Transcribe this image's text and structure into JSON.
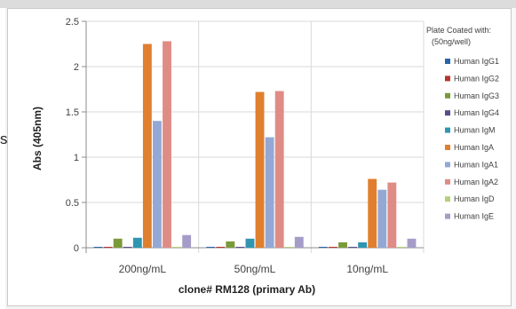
{
  "stray_text": "s",
  "chart_data": {
    "type": "bar",
    "categories": [
      "200ng/mL",
      "50ng/mL",
      "10ng/mL"
    ],
    "ylabel": "Abs (405nm)",
    "xlabel": "clone# RM128 (primary Ab)",
    "ylim": [
      0,
      2.5
    ],
    "yticks": [
      "0",
      "0.5",
      "1",
      "1.5",
      "2",
      "2.5"
    ],
    "grid": true,
    "legend": {
      "placement": "right",
      "title_lines": [
        "Plate Coated with:",
        "(50ng/well)"
      ]
    },
    "series": [
      {
        "name": "Human IgG1",
        "color": "#2a64a8",
        "values": [
          0.01,
          0.01,
          0.01
        ]
      },
      {
        "name": "Human IgG2",
        "color": "#b8332e",
        "values": [
          0.01,
          0.01,
          0.01
        ]
      },
      {
        "name": "Human IgG3",
        "color": "#7a9a3a",
        "values": [
          0.1,
          0.07,
          0.06
        ]
      },
      {
        "name": "Human IgG4",
        "color": "#5a4a8c",
        "values": [
          0.01,
          0.01,
          0.01
        ]
      },
      {
        "name": "Human IgM",
        "color": "#2f95b0",
        "values": [
          0.11,
          0.1,
          0.06
        ]
      },
      {
        "name": "Human IgA",
        "color": "#e07f2e",
        "values": [
          2.25,
          1.72,
          0.76
        ]
      },
      {
        "name": "Human IgA1",
        "color": "#94a8d6",
        "values": [
          1.4,
          1.22,
          0.64
        ]
      },
      {
        "name": "Human IgA2",
        "color": "#e08c86",
        "values": [
          2.28,
          1.73,
          0.72
        ]
      },
      {
        "name": "Human IgD",
        "color": "#b5cf7a",
        "values": [
          0.01,
          0.01,
          0.01
        ]
      },
      {
        "name": "Human IgE",
        "color": "#a69cc8",
        "values": [
          0.14,
          0.12,
          0.1
        ]
      }
    ]
  }
}
